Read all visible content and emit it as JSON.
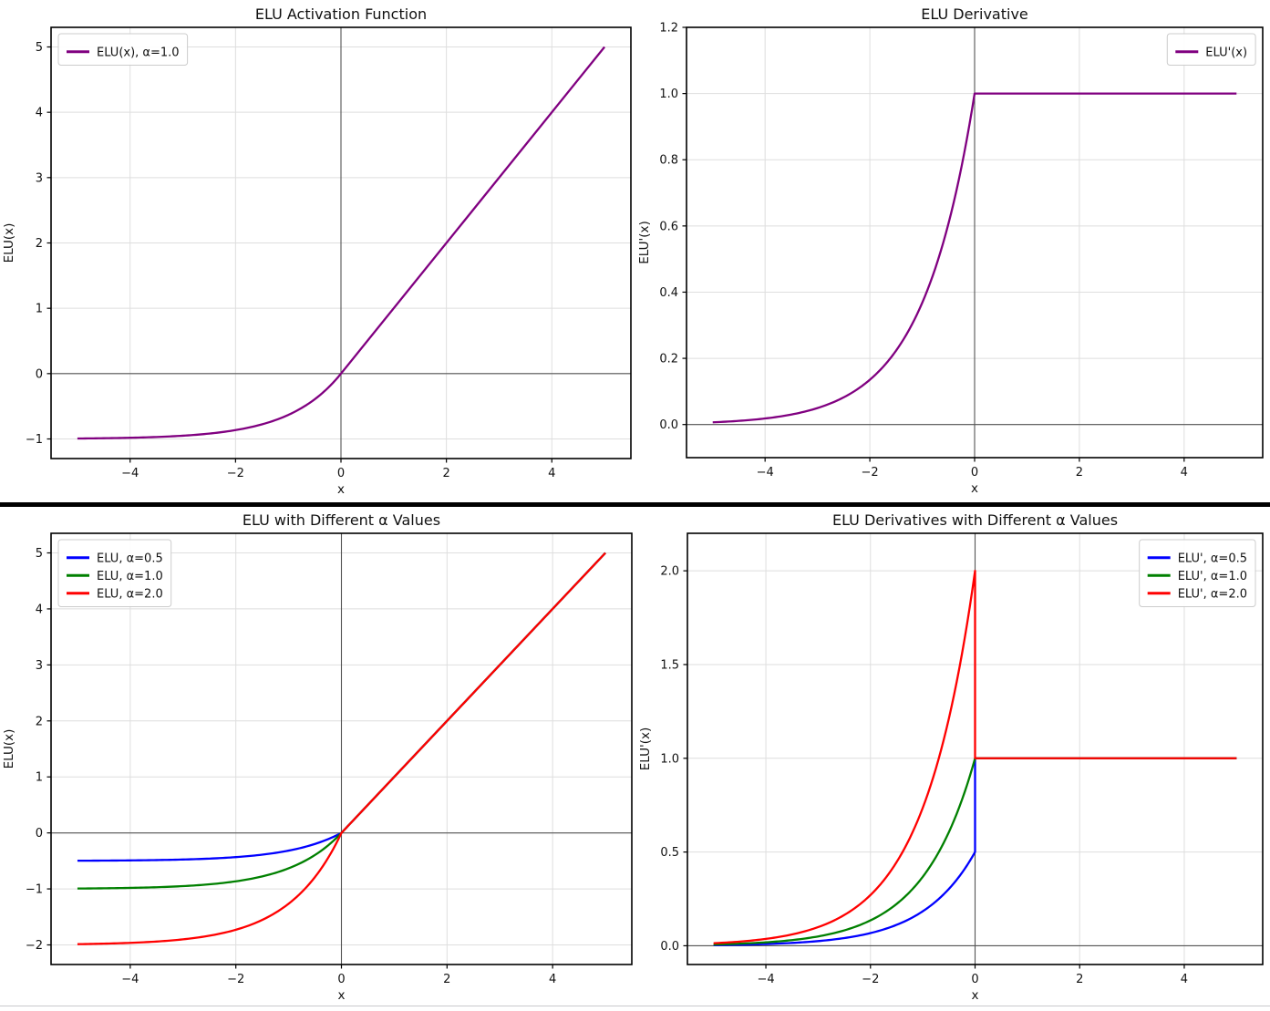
{
  "page": {
    "background": "#ffffff",
    "separator_color": "#000000",
    "bottom_rule_color": "#c9c9cc",
    "styles": {
      "grid_color": "#dedede",
      "zero_line_color": "#555555",
      "frame_color": "#000000",
      "text_color": "#111111",
      "legend_border": "#cccccc",
      "legend_bg": "#ffffff"
    }
  },
  "chart_data": [
    {
      "type": "line",
      "title": "ELU Activation Function",
      "xlabel": "x",
      "ylabel": "ELU(x)",
      "xlim": [
        -5.5,
        5.5
      ],
      "ylim": [
        -1.3,
        5.3
      ],
      "grid": true,
      "zero_lines": true,
      "xticks": {
        "values": [
          -4,
          -2,
          0,
          2,
          4
        ],
        "labels": [
          "−4",
          "−2",
          "0",
          "2",
          "4"
        ]
      },
      "yticks": {
        "values": [
          -1,
          0,
          1,
          2,
          3,
          4,
          5
        ],
        "labels": [
          "−1",
          "0",
          "1",
          "2",
          "3",
          "4",
          "5"
        ]
      },
      "legend": {
        "position": "top-left",
        "items": [
          {
            "label": "ELU(x), α=1.0",
            "color": "#800080"
          }
        ]
      },
      "series": [
        {
          "name": "ELU(x), α=1.0",
          "fn": "elu",
          "alpha": 1.0,
          "color": "#800080",
          "x_range": [
            -5,
            5
          ],
          "points_preview": [
            [
              -5,
              -0.993
            ],
            [
              -4,
              -0.982
            ],
            [
              -3,
              -0.95
            ],
            [
              -2,
              -0.865
            ],
            [
              -1,
              -0.632
            ],
            [
              -0.5,
              -0.393
            ],
            [
              0,
              0
            ],
            [
              1,
              1
            ],
            [
              2,
              2
            ],
            [
              3,
              3
            ],
            [
              4,
              4
            ],
            [
              5,
              5
            ]
          ]
        }
      ]
    },
    {
      "type": "line",
      "title": "ELU Derivative",
      "xlabel": "x",
      "ylabel": "ELU'(x)",
      "xlim": [
        -5.5,
        5.5
      ],
      "ylim": [
        -0.1,
        1.2
      ],
      "grid": true,
      "zero_lines": true,
      "xticks": {
        "values": [
          -4,
          -2,
          0,
          2,
          4
        ],
        "labels": [
          "−4",
          "−2",
          "0",
          "2",
          "4"
        ]
      },
      "yticks": {
        "values": [
          0.0,
          0.2,
          0.4,
          0.6,
          0.8,
          1.0,
          1.2
        ],
        "labels": [
          "0.0",
          "0.2",
          "0.4",
          "0.6",
          "0.8",
          "1.0",
          "1.2"
        ]
      },
      "legend": {
        "position": "top-right",
        "items": [
          {
            "label": "ELU'(x)",
            "color": "#800080"
          }
        ]
      },
      "series": [
        {
          "name": "ELU'(x)",
          "fn": "elu_prime",
          "alpha": 1.0,
          "color": "#800080",
          "x_range": [
            -5,
            5
          ],
          "points_preview": [
            [
              -5,
              0.007
            ],
            [
              -4,
              0.018
            ],
            [
              -3,
              0.05
            ],
            [
              -2,
              0.135
            ],
            [
              -1,
              0.368
            ],
            [
              -0.5,
              0.607
            ],
            [
              0,
              1
            ],
            [
              1,
              1
            ],
            [
              3,
              1
            ],
            [
              5,
              1
            ]
          ]
        }
      ]
    },
    {
      "type": "line",
      "title": "ELU with Different α Values",
      "xlabel": "x",
      "ylabel": "ELU(x)",
      "xlim": [
        -5.5,
        5.5
      ],
      "ylim": [
        -2.35,
        5.35
      ],
      "grid": true,
      "zero_lines": true,
      "xticks": {
        "values": [
          -4,
          -2,
          0,
          2,
          4
        ],
        "labels": [
          "−4",
          "−2",
          "0",
          "2",
          "4"
        ]
      },
      "yticks": {
        "values": [
          -2,
          -1,
          0,
          1,
          2,
          3,
          4,
          5
        ],
        "labels": [
          "−2",
          "−1",
          "0",
          "1",
          "2",
          "3",
          "4",
          "5"
        ]
      },
      "legend": {
        "position": "top-left",
        "items": [
          {
            "label": "ELU, α=0.5",
            "color": "#0000ff"
          },
          {
            "label": "ELU, α=1.0",
            "color": "#008000"
          },
          {
            "label": "ELU, α=2.0",
            "color": "#ff0000"
          }
        ]
      },
      "series": [
        {
          "name": "ELU, α=0.5",
          "fn": "elu",
          "alpha": 0.5,
          "color": "#0000ff",
          "x_range": [
            -5,
            5
          ],
          "points_preview": [
            [
              -5,
              -0.497
            ],
            [
              -4,
              -0.491
            ],
            [
              -3,
              -0.475
            ],
            [
              -2,
              -0.432
            ],
            [
              -1,
              -0.316
            ],
            [
              0,
              0
            ],
            [
              2,
              2
            ],
            [
              5,
              5
            ]
          ]
        },
        {
          "name": "ELU, α=1.0",
          "fn": "elu",
          "alpha": 1.0,
          "color": "#008000",
          "x_range": [
            -5,
            5
          ],
          "points_preview": [
            [
              -5,
              -0.993
            ],
            [
              -4,
              -0.982
            ],
            [
              -3,
              -0.95
            ],
            [
              -2,
              -0.865
            ],
            [
              -1,
              -0.632
            ],
            [
              0,
              0
            ],
            [
              2,
              2
            ],
            [
              5,
              5
            ]
          ]
        },
        {
          "name": "ELU, α=2.0",
          "fn": "elu",
          "alpha": 2.0,
          "color": "#ff0000",
          "x_range": [
            -5,
            5
          ],
          "points_preview": [
            [
              -5,
              -1.987
            ],
            [
              -4,
              -1.963
            ],
            [
              -3,
              -1.9
            ],
            [
              -2,
              -1.729
            ],
            [
              -1,
              -1.264
            ],
            [
              0,
              0
            ],
            [
              2,
              2
            ],
            [
              5,
              5
            ]
          ]
        }
      ]
    },
    {
      "type": "line",
      "title": "ELU Derivatives with Different α Values",
      "xlabel": "x",
      "ylabel": "ELU'(x)",
      "xlim": [
        -5.5,
        5.5
      ],
      "ylim": [
        -0.1,
        2.2
      ],
      "grid": true,
      "zero_lines": true,
      "xticks": {
        "values": [
          -4,
          -2,
          0,
          2,
          4
        ],
        "labels": [
          "−4",
          "−2",
          "0",
          "2",
          "4"
        ]
      },
      "yticks": {
        "values": [
          0.0,
          0.5,
          1.0,
          1.5,
          2.0
        ],
        "labels": [
          "0.0",
          "0.5",
          "1.0",
          "1.5",
          "2.0"
        ]
      },
      "legend": {
        "position": "top-right",
        "items": [
          {
            "label": "ELU', α=0.5",
            "color": "#0000ff"
          },
          {
            "label": "ELU', α=1.0",
            "color": "#008000"
          },
          {
            "label": "ELU', α=2.0",
            "color": "#ff0000"
          }
        ]
      },
      "series": [
        {
          "name": "ELU', α=0.5",
          "fn": "elu_prime",
          "alpha": 0.5,
          "color": "#0000ff",
          "x_range": [
            -5,
            5
          ],
          "points_preview": [
            [
              -5,
              0.003
            ],
            [
              -3,
              0.025
            ],
            [
              -2,
              0.068
            ],
            [
              -1,
              0.184
            ],
            [
              0,
              0.5
            ],
            [
              0,
              1
            ],
            [
              2,
              1
            ],
            [
              5,
              1
            ]
          ]
        },
        {
          "name": "ELU', α=1.0",
          "fn": "elu_prime",
          "alpha": 1.0,
          "color": "#008000",
          "x_range": [
            -5,
            5
          ],
          "points_preview": [
            [
              -5,
              0.007
            ],
            [
              -3,
              0.05
            ],
            [
              -2,
              0.135
            ],
            [
              -1,
              0.368
            ],
            [
              0,
              1
            ],
            [
              2,
              1
            ],
            [
              5,
              1
            ]
          ]
        },
        {
          "name": "ELU', α=2.0",
          "fn": "elu_prime",
          "alpha": 2.0,
          "color": "#ff0000",
          "x_range": [
            -5,
            5
          ],
          "points_preview": [
            [
              -5,
              0.013
            ],
            [
              -3,
              0.1
            ],
            [
              -2,
              0.271
            ],
            [
              -1,
              0.736
            ],
            [
              0,
              2
            ],
            [
              0,
              1
            ],
            [
              2,
              1
            ],
            [
              5,
              1
            ]
          ]
        }
      ]
    }
  ]
}
